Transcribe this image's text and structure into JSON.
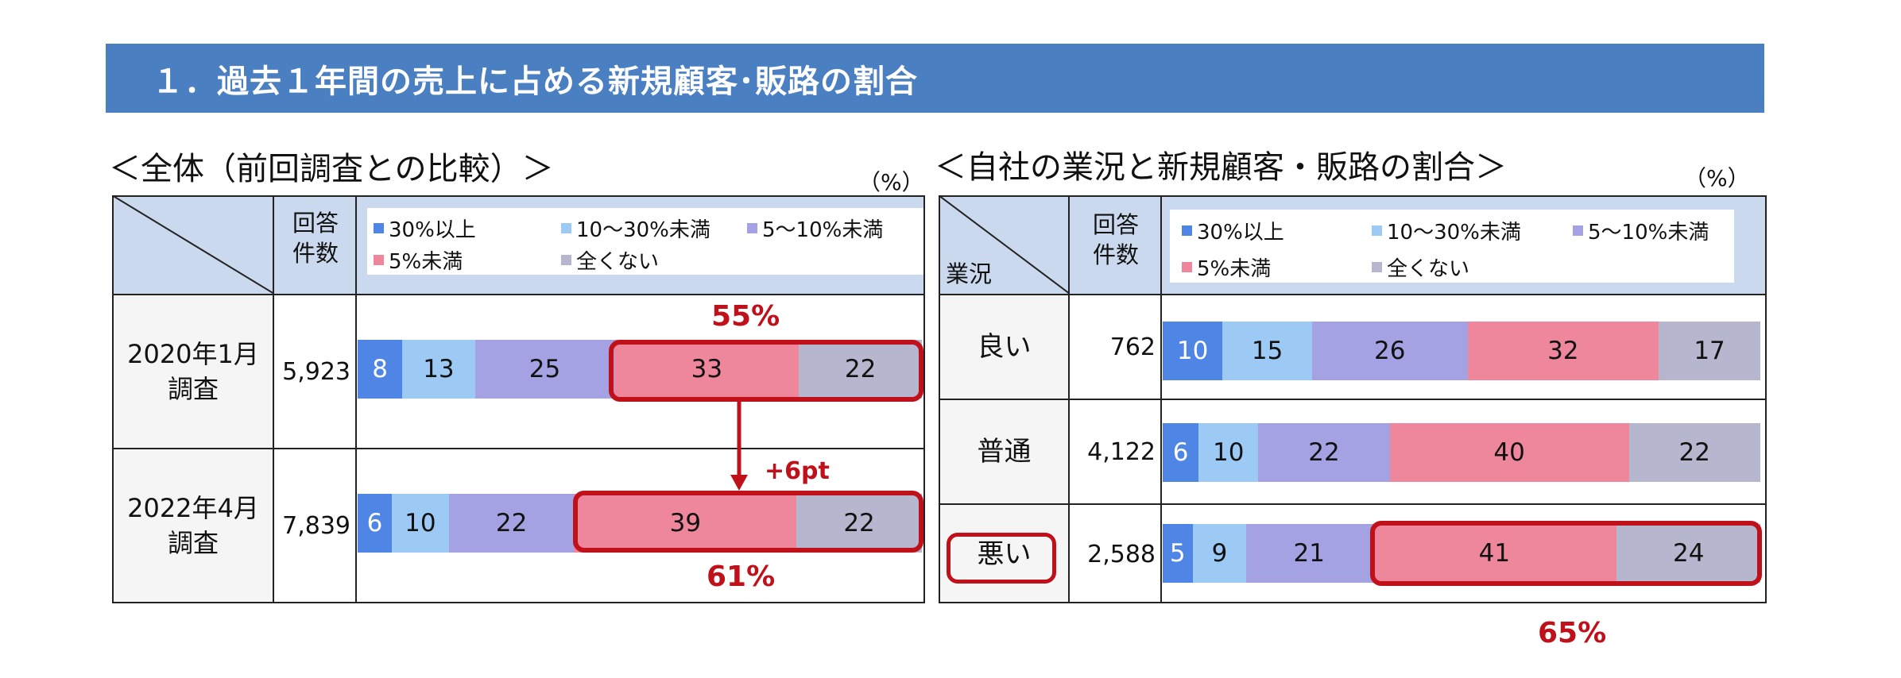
{
  "banner_title": "１．過去１年間の売上に占める新規顧客･販路の割合",
  "left": {
    "title": "＜全体（前回調査との比較）＞",
    "unit": "（%）",
    "header_count": [
      "回答",
      "件数"
    ]
  },
  "right": {
    "title": "＜自社の業況と新規顧客・販路の割合＞",
    "unit": "（%）",
    "header_row_label": "業況",
    "header_count": [
      "回答",
      "件数"
    ]
  },
  "legend": [
    {
      "label": "30%以上",
      "color": "#4f86e6"
    },
    {
      "label": "10～30%未満",
      "color": "#9dc9f5"
    },
    {
      "label": "5～10%未満",
      "color": "#a4a2e2"
    },
    {
      "label": "5%未満",
      "color": "#ee869c"
    },
    {
      "label": "全くない",
      "color": "#b6b6ce"
    }
  ],
  "chart_data": [
    {
      "type": "bar",
      "stacked": true,
      "orientation": "horizontal",
      "title": "＜全体（前回調査との比較）＞",
      "categories": [
        "2020年1月調査",
        "2022年4月調査"
      ],
      "category_lines": [
        [
          "2020年1月",
          "調査"
        ],
        [
          "2022年4月",
          "調査"
        ]
      ],
      "counts": [
        "5,923",
        "7,839"
      ],
      "series": [
        {
          "name": "30%以上",
          "values": [
            8,
            6
          ]
        },
        {
          "name": "10～30%未満",
          "values": [
            13,
            10
          ]
        },
        {
          "name": "5～10%未満",
          "values": [
            25,
            22
          ]
        },
        {
          "name": "5%未満",
          "values": [
            33,
            39
          ]
        },
        {
          "name": "全くない",
          "values": [
            22,
            22
          ]
        }
      ],
      "annotations": {
        "row1_total": "55%",
        "row2_total": "61%",
        "change": "+6pt"
      }
    },
    {
      "type": "bar",
      "stacked": true,
      "orientation": "horizontal",
      "title": "＜自社の業況と新規顧客・販路の割合＞",
      "categories": [
        "良い",
        "普通",
        "悪い"
      ],
      "counts": [
        "762",
        "4,122",
        "2,588"
      ],
      "series": [
        {
          "name": "30%以上",
          "values": [
            10,
            6,
            5
          ]
        },
        {
          "name": "10～30%未満",
          "values": [
            15,
            10,
            9
          ]
        },
        {
          "name": "5～10%未満",
          "values": [
            26,
            22,
            21
          ]
        },
        {
          "name": "5%未満",
          "values": [
            32,
            40,
            41
          ]
        },
        {
          "name": "全くない",
          "values": [
            17,
            22,
            24
          ]
        }
      ],
      "annotations": {
        "bad_total": "65%"
      }
    }
  ]
}
